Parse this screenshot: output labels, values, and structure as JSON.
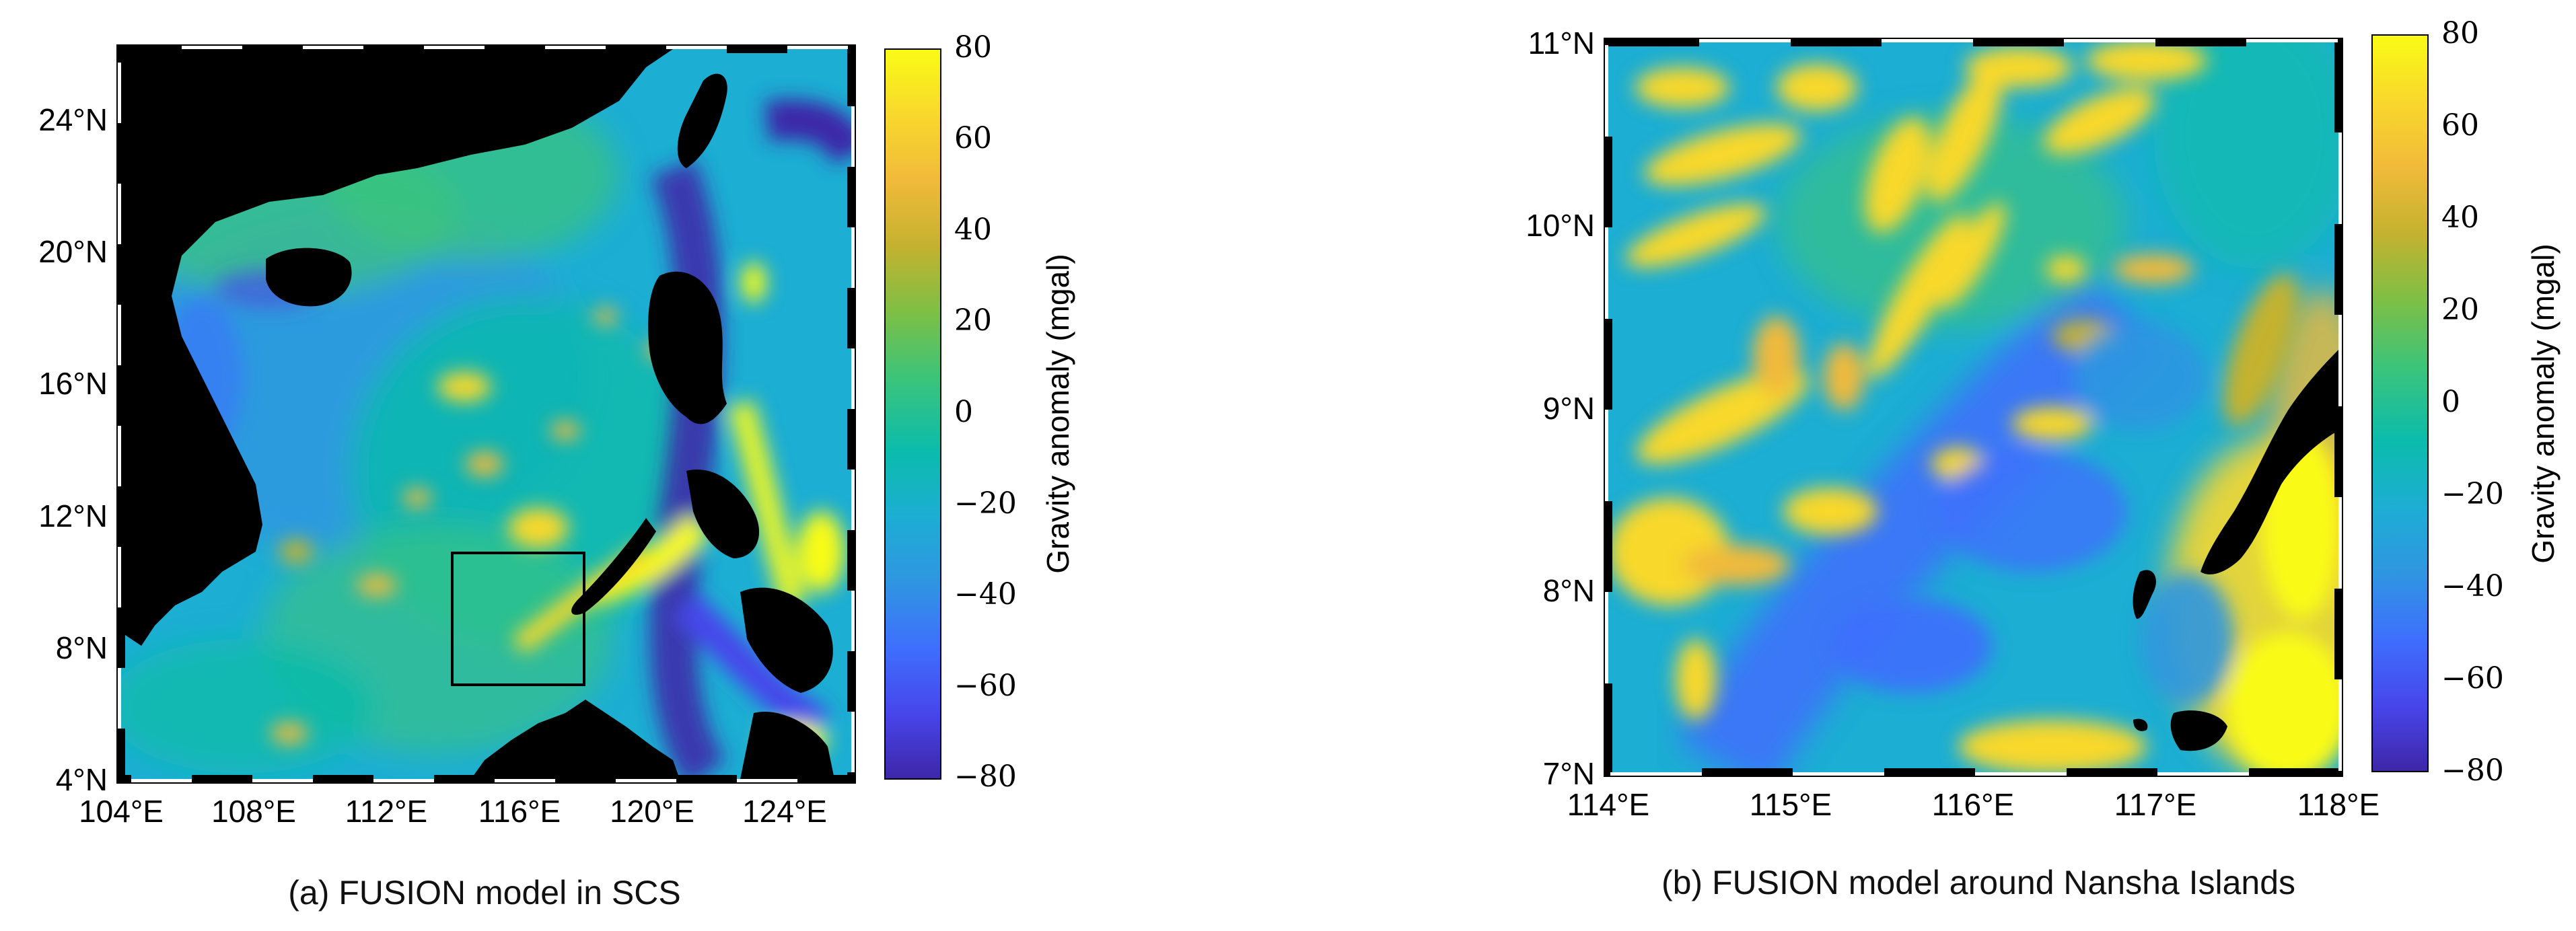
{
  "panels": [
    {
      "caption": "(a) FUSION model in SCS",
      "lon_ticks": [
        "104°E",
        "108°E",
        "112°E",
        "116°E",
        "120°E",
        "124°E"
      ],
      "lat_ticks": [
        "4°N",
        "8°N",
        "12°N",
        "16°N",
        "20°N",
        "24°N"
      ],
      "lon_range": [
        104,
        126
      ],
      "lat_range": [
        4,
        26
      ],
      "inset_box": {
        "lon": [
          114,
          118
        ],
        "lat": [
          7,
          11
        ]
      }
    },
    {
      "caption": "(b) FUSION model around Nansha Islands",
      "lon_ticks": [
        "114°E",
        "115°E",
        "116°E",
        "117°E",
        "118°E"
      ],
      "lat_ticks": [
        "7°N",
        "8°N",
        "9°N",
        "10°N",
        "11°N"
      ],
      "lon_range": [
        114,
        118
      ],
      "lat_range": [
        7,
        11
      ]
    }
  ],
  "colorbar": {
    "label": "Gravity anomaly (mgal)",
    "ticks": [
      "80",
      "60",
      "40",
      "20",
      "0",
      "−20",
      "−40",
      "−60",
      "−80"
    ],
    "range": [
      -80,
      80
    ],
    "colormap": [
      "#3e26a8",
      "#4746eb",
      "#3e6ffd",
      "#2f96e1",
      "#1caed3",
      "#0bbcab",
      "#3cc47a",
      "#7ebf45",
      "#c4b22f",
      "#f1ba3a",
      "#f8d82c",
      "#f9fb15"
    ]
  }
}
